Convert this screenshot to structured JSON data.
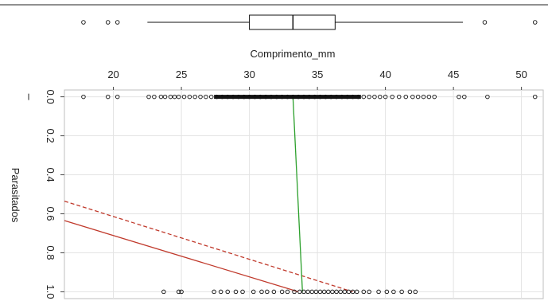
{
  "chart_data": {
    "type": "scatter",
    "xlabel": "Comprimento_mm",
    "ylabel": "Parasitados",
    "x_ticks": [
      20,
      25,
      30,
      35,
      40,
      45,
      50
    ],
    "y_ticks": [
      "0.0",
      "0.2",
      "0.4",
      "0.6",
      "0.8",
      "1.0"
    ],
    "y_tick_values": [
      0,
      0.2,
      0.4,
      0.6,
      0.8,
      1.0
    ],
    "xlim": [
      16.4,
      51.6
    ],
    "ylim": [
      1.035,
      -0.035
    ],
    "y_reversed": true,
    "grid": true,
    "points_y0": [
      17.8,
      19.6,
      20.3,
      22.6,
      23.0,
      23.5,
      23.8,
      24.2,
      24.5,
      24.8,
      25.2,
      25.6,
      26.0,
      26.4,
      26.8,
      27.2,
      27.6,
      28.0,
      28.4,
      28.8,
      29.2,
      29.6,
      30.0,
      30.4,
      30.8,
      31.2,
      31.6,
      32.0,
      32.4,
      32.8,
      33.2,
      33.6,
      34.0,
      34.4,
      34.8,
      35.2,
      35.6,
      36.0,
      36.4,
      36.8,
      37.2,
      37.6,
      38.0,
      38.4,
      38.8,
      39.2,
      39.6,
      40.0,
      40.5,
      41.0,
      41.5,
      42.0,
      42.4,
      42.8,
      43.2,
      43.6,
      45.4,
      45.8,
      47.5,
      51.0
    ],
    "points_y1": [
      23.7,
      24.8,
      25.0,
      27.4,
      27.9,
      28.4,
      29.0,
      29.5,
      30.3,
      30.9,
      31.3,
      31.8,
      32.4,
      32.8,
      33.3,
      33.7,
      34.0,
      34.3,
      34.6,
      34.9,
      35.2,
      35.5,
      35.8,
      36.1,
      36.4,
      36.7,
      37.0,
      37.3,
      37.6,
      37.9,
      38.4,
      38.8,
      39.5,
      40.1,
      40.6,
      41.2,
      41.8,
      42.2
    ],
    "boxplot": {
      "whisker_low": 22.5,
      "q1": 30.0,
      "median": 33.2,
      "q3": 36.3,
      "whisker_high": 45.7,
      "outliers": [
        17.8,
        19.6,
        20.3,
        47.3,
        51.0
      ]
    },
    "lines": [
      {
        "name": "solid-red",
        "color": "#c0392b",
        "style": "solid",
        "x": [
          16.4,
          33.6
        ],
        "y": [
          0.635,
          1.0
        ]
      },
      {
        "name": "dashed-red",
        "color": "#c0392b",
        "style": "dashed",
        "x": [
          16.4,
          37.6
        ],
        "y": [
          0.535,
          1.0
        ]
      },
      {
        "name": "green",
        "color": "#2ca02c",
        "style": "solid",
        "x": [
          33.2,
          33.9
        ],
        "y": [
          0.0,
          1.0
        ]
      }
    ]
  }
}
